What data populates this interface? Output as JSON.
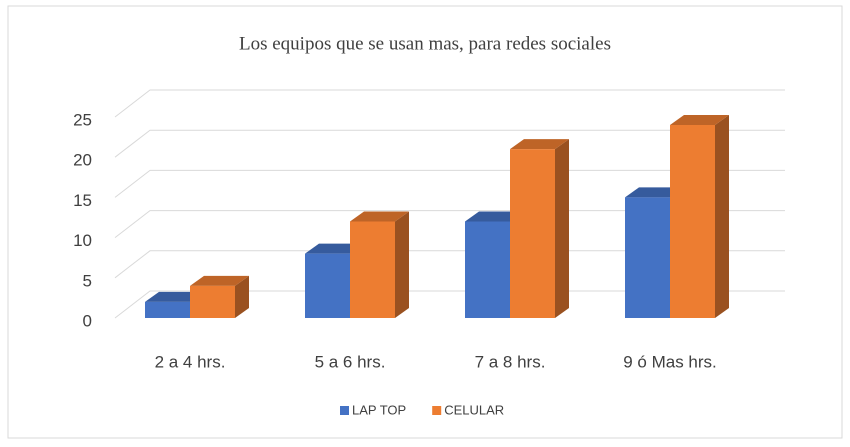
{
  "chart_data": {
    "type": "bar3d",
    "title": "Los equipos que se usan mas, para redes sociales",
    "categories": [
      "2 a 4 hrs.",
      "5 a 6 hrs.",
      "7 a 8 hrs.",
      "9 ó Mas hrs."
    ],
    "series": [
      {
        "name": "LAP TOP",
        "color": "#4472c4",
        "values": [
          2,
          8,
          12,
          15
        ]
      },
      {
        "name": "CELULAR",
        "color": "#ed7d31",
        "values": [
          4,
          12,
          21,
          24
        ]
      }
    ],
    "ylim": [
      0,
      25
    ],
    "yticks": [
      0,
      5,
      10,
      15,
      20,
      25
    ],
    "grid": true,
    "legend": "bottom"
  }
}
